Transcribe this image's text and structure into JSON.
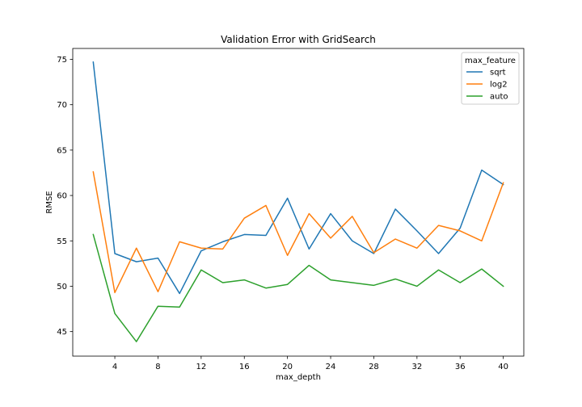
{
  "chart_data": {
    "type": "line",
    "title": "Validation Error with GridSearch",
    "xlabel": "max_depth",
    "ylabel": "RMSE",
    "x": [
      2,
      4,
      6,
      8,
      10,
      12,
      14,
      16,
      18,
      20,
      22,
      24,
      26,
      28,
      30,
      32,
      34,
      36,
      38,
      40
    ],
    "xlim": [
      0.1,
      41.9
    ],
    "ylim": [
      42.3,
      76.2
    ],
    "xticks": [
      4,
      8,
      12,
      16,
      20,
      24,
      28,
      32,
      36,
      40
    ],
    "yticks": [
      45,
      50,
      55,
      60,
      65,
      70,
      75
    ],
    "grid": false,
    "legend": {
      "title": "max_feature",
      "position": "top-right"
    },
    "series": [
      {
        "name": "sqrt",
        "color": "#1f77b4",
        "values": [
          74.7,
          53.6,
          52.7,
          53.1,
          49.2,
          53.9,
          54.9,
          55.7,
          55.6,
          59.7,
          54.1,
          58.0,
          55.0,
          53.6,
          58.5,
          56.1,
          53.6,
          56.4,
          62.8,
          61.2
        ]
      },
      {
        "name": "log2",
        "color": "#ff7f0e",
        "values": [
          62.6,
          49.3,
          54.2,
          49.4,
          54.9,
          54.2,
          54.1,
          57.5,
          58.9,
          53.4,
          58.0,
          55.3,
          57.7,
          53.7,
          55.2,
          54.2,
          56.7,
          56.1,
          55.0,
          61.4
        ]
      },
      {
        "name": "auto",
        "color": "#2ca02c",
        "values": [
          55.7,
          47.0,
          43.9,
          47.8,
          47.7,
          51.8,
          50.4,
          50.7,
          49.8,
          50.2,
          52.3,
          50.7,
          50.4,
          50.1,
          50.8,
          50.0,
          51.8,
          50.4,
          51.9,
          50.0
        ]
      }
    ]
  }
}
